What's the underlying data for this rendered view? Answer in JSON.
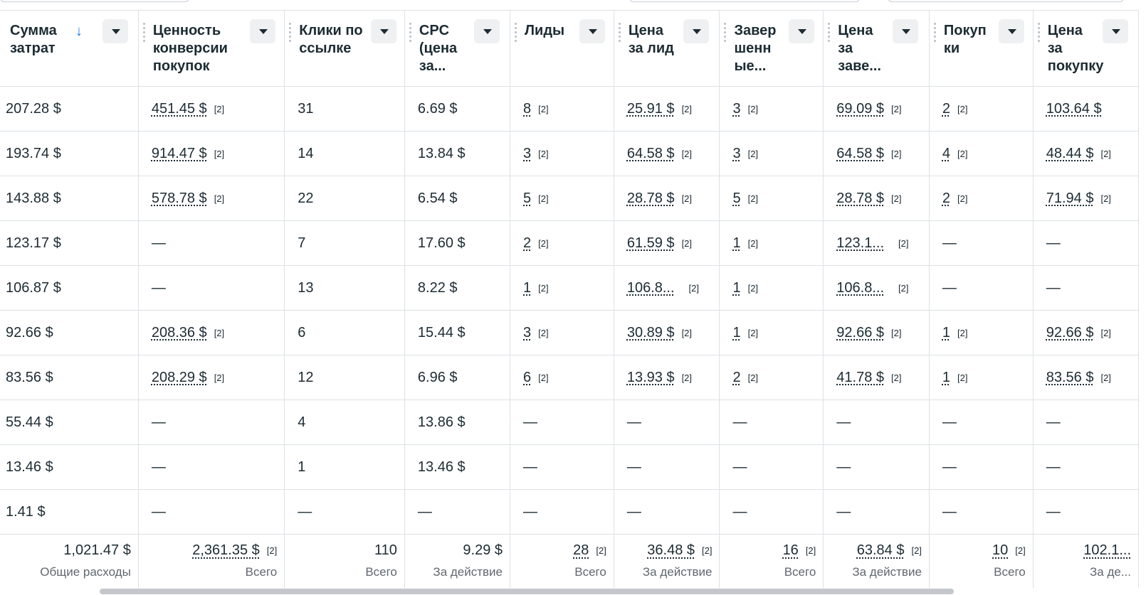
{
  "columns": [
    {
      "title": "Сумма затрат",
      "sorted": true,
      "sort_icon": "↓"
    },
    {
      "title": "Ценность конверсии покупок"
    },
    {
      "title": "Клики по ссылке"
    },
    {
      "title": "CPC (цена за..."
    },
    {
      "title": "Лиды"
    },
    {
      "title": "Цена за лид"
    },
    {
      "title": "Завер шенн ые..."
    },
    {
      "title": "Цена за заве..."
    },
    {
      "title": "Покуп ки"
    },
    {
      "title": "Цена за покупку"
    }
  ],
  "rows": [
    [
      "207.28 $",
      "451.45 $",
      "31",
      "6.69 $",
      "8",
      "25.91 $",
      "3",
      "69.09 $",
      "2",
      "103.64 $"
    ],
    [
      "193.74 $",
      "914.47 $",
      "14",
      "13.84 $",
      "3",
      "64.58 $",
      "3",
      "64.58 $",
      "4",
      "48.44 $"
    ],
    [
      "143.88 $",
      "578.78 $",
      "22",
      "6.54 $",
      "5",
      "28.78 $",
      "5",
      "28.78 $",
      "2",
      "71.94 $"
    ],
    [
      "123.17 $",
      "—",
      "7",
      "17.60 $",
      "2",
      "61.59 $",
      "1",
      "123.1...",
      "—",
      "—"
    ],
    [
      "106.87 $",
      "—",
      "13",
      "8.22 $",
      "1",
      "106.8...",
      "1",
      "106.8...",
      "—",
      "—"
    ],
    [
      "92.66 $",
      "208.36 $",
      "6",
      "15.44 $",
      "3",
      "30.89 $",
      "1",
      "92.66 $",
      "1",
      "92.66 $"
    ],
    [
      "83.56 $",
      "208.29 $",
      "12",
      "6.96 $",
      "6",
      "13.93 $",
      "2",
      "41.78 $",
      "1",
      "83.56 $"
    ],
    [
      "55.44 $",
      "—",
      "4",
      "13.86 $",
      "—",
      "—",
      "—",
      "—",
      "—",
      "—"
    ],
    [
      "13.46 $",
      "—",
      "1",
      "13.46 $",
      "—",
      "—",
      "—",
      "—",
      "—",
      "—"
    ],
    [
      "1.41 $",
      "—",
      "—",
      "—",
      "—",
      "—",
      "—",
      "—",
      "—",
      "—"
    ]
  ],
  "ref_marker": "[2]",
  "totals": [
    {
      "value": "1,021.47 $",
      "label": "Общие расходы"
    },
    {
      "value": "2,361.35 $",
      "label": "Всего"
    },
    {
      "value": "110",
      "label": "Всего"
    },
    {
      "value": "9.29 $",
      "label": "За действие"
    },
    {
      "value": "28",
      "label": "Всего"
    },
    {
      "value": "36.48 $",
      "label": "За действие"
    },
    {
      "value": "16",
      "label": "Всего"
    },
    {
      "value": "63.84 $",
      "label": "За действие"
    },
    {
      "value": "10",
      "label": "Всего"
    },
    {
      "value": "102.1...",
      "label": "За де..."
    }
  ],
  "colors": {
    "accent": "#1877f2",
    "text": "#1c2b33",
    "muted": "#606770",
    "border": "#dde1e5"
  }
}
